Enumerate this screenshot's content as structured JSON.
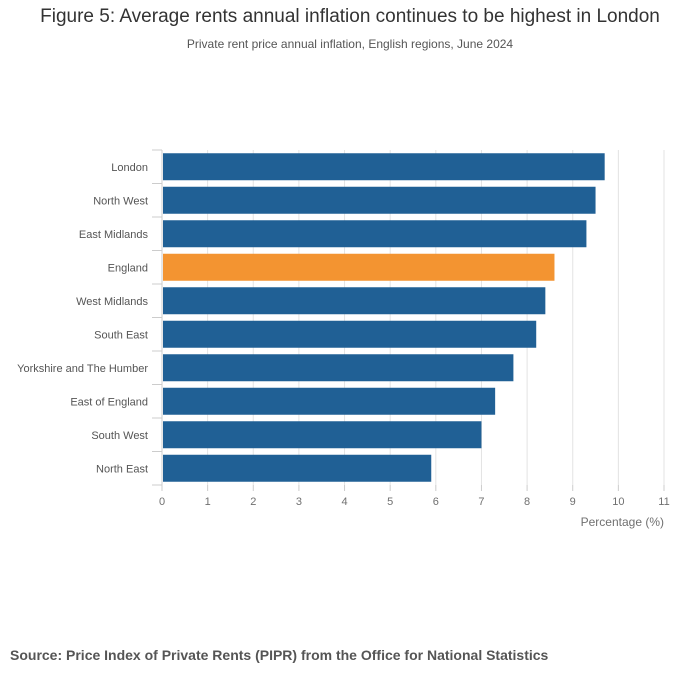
{
  "chart_data": {
    "type": "bar",
    "orientation": "horizontal",
    "title": "Figure 5: Average rents annual inflation continues to be highest in London",
    "subtitle": "Private rent price annual inflation, English regions, June 2024",
    "categories": [
      "London",
      "North West",
      "East Midlands",
      "England",
      "West Midlands",
      "South East",
      "Yorkshire and The Humber",
      "East of England",
      "South West",
      "North East"
    ],
    "values": [
      9.7,
      9.5,
      9.3,
      8.6,
      8.4,
      8.2,
      7.7,
      7.3,
      7.0,
      5.9
    ],
    "highlight": "England",
    "colors": {
      "default": "#206095",
      "highlight": "#f39431"
    },
    "xlabel": "Percentage (%)",
    "ylabel": "",
    "xlim": [
      0,
      11
    ],
    "xticks": [
      0,
      1,
      2,
      3,
      4,
      5,
      6,
      7,
      8,
      9,
      10,
      11
    ],
    "grid": true,
    "source": "Source: Price Index of Private Rents (PIPR) from the Office for National Statistics"
  }
}
